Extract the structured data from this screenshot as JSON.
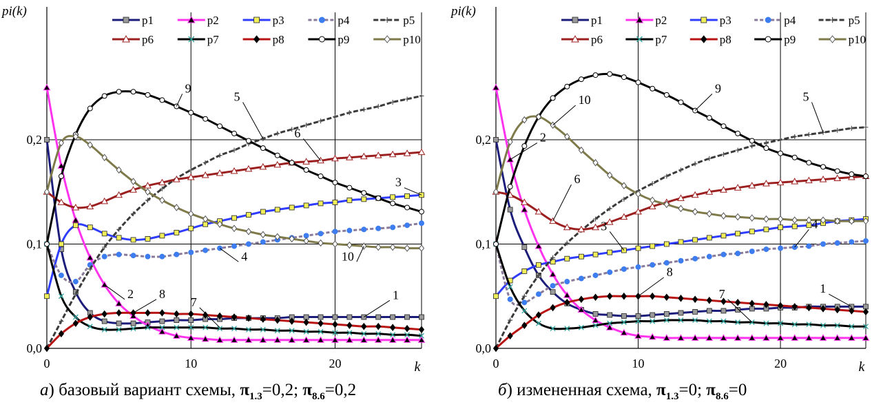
{
  "chart_data": [
    {
      "type": "line",
      "ylabel": "pi(k)",
      "xlabel": "k",
      "xlim": [
        0,
        26
      ],
      "ylim": [
        0,
        0.25
      ],
      "xticks": [
        "0",
        "10",
        "20"
      ],
      "yticks": [
        "0,0",
        "0,1",
        "0,2"
      ],
      "grid": true,
      "legend_position": "top",
      "x": [
        0,
        1,
        2,
        3,
        4,
        5,
        6,
        7,
        8,
        9,
        10,
        11,
        12,
        13,
        14,
        15,
        16,
        17,
        18,
        19,
        20,
        21,
        22,
        23,
        24,
        25,
        26
      ],
      "series": [
        {
          "name": "p1",
          "values": [
            0.2,
            0.095,
            0.054,
            0.034,
            0.026,
            0.024,
            0.024,
            0.025,
            0.026,
            0.027,
            0.027,
            0.028,
            0.028,
            0.029,
            0.029,
            0.029,
            0.029,
            0.03,
            0.03,
            0.03,
            0.03,
            0.03,
            0.03,
            0.03,
            0.03,
            0.03,
            0.03
          ]
        },
        {
          "name": "p2",
          "values": [
            0.25,
            0.175,
            0.123,
            0.087,
            0.061,
            0.043,
            0.031,
            0.022,
            0.016,
            0.012,
            0.01,
            0.009,
            0.008,
            0.008,
            0.008,
            0.008,
            0.008,
            0.008,
            0.008,
            0.008,
            0.008,
            0.008,
            0.008,
            0.008,
            0.008,
            0.008,
            0.008
          ]
        },
        {
          "name": "p3",
          "values": [
            0.05,
            0.1,
            0.118,
            0.116,
            0.11,
            0.106,
            0.104,
            0.105,
            0.108,
            0.111,
            0.115,
            0.119,
            0.122,
            0.125,
            0.128,
            0.131,
            0.133,
            0.135,
            0.137,
            0.139,
            0.14,
            0.142,
            0.143,
            0.144,
            0.145,
            0.146,
            0.147
          ]
        },
        {
          "name": "p4",
          "values": [
            0.1,
            0.07,
            0.064,
            0.08,
            0.088,
            0.09,
            0.089,
            0.088,
            0.088,
            0.09,
            0.092,
            0.094,
            0.096,
            0.098,
            0.1,
            0.102,
            0.104,
            0.106,
            0.108,
            0.11,
            0.112,
            0.113,
            0.114,
            0.115,
            0.116,
            0.118,
            0.12
          ]
        },
        {
          "name": "p5",
          "values": [
            0,
            0.026,
            0.052,
            0.076,
            0.097,
            0.114,
            0.129,
            0.142,
            0.153,
            0.163,
            0.171,
            0.178,
            0.185,
            0.19,
            0.196,
            0.201,
            0.206,
            0.21,
            0.214,
            0.218,
            0.222,
            0.226,
            0.229,
            0.232,
            0.236,
            0.239,
            0.242
          ]
        },
        {
          "name": "p6",
          "values": [
            0.15,
            0.14,
            0.135,
            0.136,
            0.141,
            0.147,
            0.152,
            0.156,
            0.159,
            0.162,
            0.164,
            0.166,
            0.168,
            0.17,
            0.172,
            0.174,
            0.176,
            0.178,
            0.179,
            0.18,
            0.182,
            0.183,
            0.184,
            0.185,
            0.186,
            0.187,
            0.188
          ]
        },
        {
          "name": "p7",
          "values": [
            0.1,
            0.05,
            0.03,
            0.021,
            0.018,
            0.018,
            0.019,
            0.02,
            0.02,
            0.02,
            0.02,
            0.02,
            0.019,
            0.019,
            0.018,
            0.018,
            0.017,
            0.017,
            0.016,
            0.016,
            0.015,
            0.015,
            0.014,
            0.014,
            0.013,
            0.013,
            0.012
          ]
        },
        {
          "name": "p8",
          "values": [
            0,
            0.014,
            0.024,
            0.03,
            0.033,
            0.034,
            0.034,
            0.034,
            0.034,
            0.033,
            0.033,
            0.032,
            0.031,
            0.03,
            0.029,
            0.028,
            0.027,
            0.026,
            0.025,
            0.024,
            0.023,
            0.022,
            0.021,
            0.021,
            0.02,
            0.019,
            0.018
          ]
        },
        {
          "name": "p9",
          "values": [
            0.1,
            0.165,
            0.205,
            0.23,
            0.242,
            0.246,
            0.246,
            0.243,
            0.238,
            0.232,
            0.226,
            0.22,
            0.213,
            0.206,
            0.199,
            0.192,
            0.185,
            0.178,
            0.171,
            0.165,
            0.159,
            0.154,
            0.149,
            0.144,
            0.139,
            0.135,
            0.131
          ]
        },
        {
          "name": "p10",
          "values": [
            0.15,
            0.197,
            0.203,
            0.195,
            0.183,
            0.171,
            0.16,
            0.15,
            0.142,
            0.135,
            0.129,
            0.124,
            0.119,
            0.115,
            0.112,
            0.109,
            0.107,
            0.105,
            0.103,
            0.101,
            0.1,
            0.099,
            0.098,
            0.097,
            0.097,
            0.096,
            0.096
          ]
        }
      ],
      "annotations": [
        {
          "text": "9",
          "at": [
            9,
            0.232
          ],
          "label": [
            9.4,
            0.244
          ]
        },
        {
          "text": "5",
          "at": [
            15,
            0.201
          ],
          "label": [
            13.6,
            0.236
          ]
        },
        {
          "text": "6",
          "at": [
            19,
            0.18
          ],
          "label": [
            17.8,
            0.201
          ]
        },
        {
          "text": "3",
          "at": [
            26,
            0.147
          ],
          "label": [
            24.8,
            0.154
          ]
        },
        {
          "text": "4",
          "at": [
            12,
            0.096
          ],
          "label": [
            13.3,
            0.083
          ]
        },
        {
          "text": "10",
          "at": [
            22,
            0.098
          ],
          "label": [
            21.5,
            0.083
          ]
        },
        {
          "text": "2",
          "at": [
            4,
            0.061
          ],
          "label": [
            5.4,
            0.047
          ]
        },
        {
          "text": "8",
          "at": [
            6,
            0.034
          ],
          "label": [
            7.6,
            0.047
          ]
        },
        {
          "text": "7",
          "at": [
            12,
            0.02
          ],
          "label": [
            10.6,
            0.039
          ]
        },
        {
          "text": "1",
          "at": [
            22,
            0.03
          ],
          "label": [
            23.8,
            0.046
          ]
        }
      ],
      "caption": {
        "prefix": "а",
        "text": ") базовый вариант схемы, ",
        "sym1": "π",
        "sub1": "1.3",
        "val1": "=0,2; ",
        "sym2": "π",
        "sub2": "8.6",
        "val2": "=0,2"
      }
    },
    {
      "type": "line",
      "ylabel": "pi(k)",
      "xlabel": "k",
      "xlim": [
        0,
        26
      ],
      "ylim": [
        0,
        0.25
      ],
      "xticks": [
        "0",
        "10",
        "20"
      ],
      "yticks": [
        "0,0",
        "0,1",
        "0,2"
      ],
      "grid": true,
      "legend_position": "top",
      "x": [
        0,
        1,
        2,
        3,
        4,
        5,
        6,
        7,
        8,
        9,
        10,
        11,
        12,
        13,
        14,
        15,
        16,
        17,
        18,
        19,
        20,
        21,
        22,
        23,
        24,
        25,
        26
      ],
      "series": [
        {
          "name": "p1",
          "values": [
            0.2,
            0.133,
            0.097,
            0.07,
            0.054,
            0.043,
            0.037,
            0.033,
            0.032,
            0.031,
            0.031,
            0.032,
            0.033,
            0.034,
            0.035,
            0.036,
            0.036,
            0.037,
            0.038,
            0.038,
            0.039,
            0.039,
            0.04,
            0.04,
            0.04,
            0.04,
            0.04
          ]
        },
        {
          "name": "p2",
          "values": [
            0.25,
            0.181,
            0.133,
            0.098,
            0.071,
            0.051,
            0.037,
            0.027,
            0.02,
            0.015,
            0.012,
            0.011,
            0.01,
            0.01,
            0.01,
            0.01,
            0.01,
            0.01,
            0.01,
            0.01,
            0.01,
            0.01,
            0.01,
            0.01,
            0.01,
            0.01,
            0.01
          ]
        },
        {
          "name": "p3",
          "values": [
            0.05,
            0.065,
            0.074,
            0.08,
            0.083,
            0.086,
            0.088,
            0.09,
            0.092,
            0.094,
            0.096,
            0.098,
            0.1,
            0.102,
            0.104,
            0.106,
            0.108,
            0.11,
            0.112,
            0.114,
            0.116,
            0.117,
            0.118,
            0.12,
            0.122,
            0.123,
            0.124
          ]
        },
        {
          "name": "p4",
          "values": [
            0.1,
            0.047,
            0.044,
            0.052,
            0.06,
            0.064,
            0.067,
            0.07,
            0.073,
            0.076,
            0.078,
            0.08,
            0.082,
            0.084,
            0.086,
            0.088,
            0.09,
            0.091,
            0.093,
            0.095,
            0.096,
            0.097,
            0.098,
            0.1,
            0.101,
            0.102,
            0.103
          ]
        },
        {
          "name": "p5",
          "values": [
            0,
            0.027,
            0.05,
            0.07,
            0.087,
            0.101,
            0.113,
            0.124,
            0.134,
            0.143,
            0.151,
            0.158,
            0.165,
            0.171,
            0.177,
            0.182,
            0.186,
            0.19,
            0.194,
            0.197,
            0.2,
            0.203,
            0.205,
            0.207,
            0.209,
            0.211,
            0.212
          ]
        },
        {
          "name": "p6",
          "values": [
            0.15,
            0.147,
            0.14,
            0.131,
            0.122,
            0.116,
            0.114,
            0.116,
            0.121,
            0.126,
            0.131,
            0.136,
            0.14,
            0.144,
            0.147,
            0.15,
            0.152,
            0.154,
            0.156,
            0.158,
            0.159,
            0.16,
            0.161,
            0.162,
            0.163,
            0.164,
            0.165
          ]
        },
        {
          "name": "p7",
          "values": [
            0.1,
            0.059,
            0.036,
            0.024,
            0.019,
            0.019,
            0.02,
            0.022,
            0.024,
            0.025,
            0.026,
            0.026,
            0.027,
            0.027,
            0.027,
            0.026,
            0.026,
            0.025,
            0.025,
            0.024,
            0.024,
            0.023,
            0.023,
            0.022,
            0.022,
            0.021,
            0.021
          ]
        },
        {
          "name": "p8",
          "values": [
            0,
            0.012,
            0.022,
            0.032,
            0.039,
            0.044,
            0.047,
            0.049,
            0.05,
            0.05,
            0.05,
            0.05,
            0.049,
            0.048,
            0.047,
            0.046,
            0.045,
            0.044,
            0.043,
            0.042,
            0.041,
            0.04,
            0.039,
            0.038,
            0.037,
            0.036,
            0.035
          ]
        },
        {
          "name": "p9",
          "values": [
            0.1,
            0.155,
            0.194,
            0.222,
            0.24,
            0.251,
            0.258,
            0.262,
            0.263,
            0.26,
            0.255,
            0.249,
            0.243,
            0.236,
            0.228,
            0.221,
            0.213,
            0.206,
            0.199,
            0.192,
            0.187,
            0.183,
            0.178,
            0.174,
            0.17,
            0.167,
            0.165
          ]
        },
        {
          "name": "p10",
          "values": [
            0.15,
            0.198,
            0.219,
            0.222,
            0.214,
            0.203,
            0.19,
            0.178,
            0.166,
            0.156,
            0.148,
            0.142,
            0.138,
            0.134,
            0.131,
            0.129,
            0.127,
            0.126,
            0.125,
            0.124,
            0.124,
            0.123,
            0.123,
            0.123,
            0.122,
            0.122,
            0.122
          ]
        }
      ],
      "annotations": [
        {
          "text": "2",
          "at": [
            1,
            0.181
          ],
          "label": [
            2.9,
            0.197
          ]
        },
        {
          "text": "6",
          "at": [
            4,
            0.122
          ],
          "label": [
            5.3,
            0.157
          ]
        },
        {
          "text": "10",
          "at": [
            4,
            0.214
          ],
          "label": [
            5.6,
            0.233
          ]
        },
        {
          "text": "9",
          "at": [
            14,
            0.228
          ],
          "label": [
            15.2,
            0.244
          ]
        },
        {
          "text": "5",
          "at": [
            23,
            0.207
          ],
          "label": [
            22.2,
            0.236
          ]
        },
        {
          "text": "3",
          "at": [
            9,
            0.094
          ],
          "label": [
            8.0,
            0.112
          ]
        },
        {
          "text": "4",
          "at": [
            21,
            0.097
          ],
          "label": [
            22.0,
            0.114
          ]
        },
        {
          "text": "8",
          "at": [
            10,
            0.05
          ],
          "label": [
            11.8,
            0.068
          ]
        },
        {
          "text": "7",
          "at": [
            18,
            0.025
          ],
          "label": [
            16.3,
            0.047
          ]
        },
        {
          "text": "1",
          "at": [
            25,
            0.04
          ],
          "label": [
            23.4,
            0.052
          ]
        }
      ],
      "caption": {
        "prefix": "б",
        "text": ") измененная схема, ",
        "sym1": "π",
        "sub1": "1.3",
        "val1": "=0; ",
        "sym2": "π",
        "sub2": "8.6",
        "val2": "=0"
      }
    }
  ],
  "legend": [
    {
      "name": "p1",
      "color": "#1c1c7a",
      "marker": "square",
      "marker_fill": "#9a9a9a",
      "dash": ""
    },
    {
      "name": "p2",
      "color": "#ff33ee",
      "marker": "triangle",
      "marker_fill": "#000000",
      "dash": ""
    },
    {
      "name": "p3",
      "color": "#2f3dff",
      "marker": "square",
      "marker_fill": "#f0ee5a",
      "dash": ""
    },
    {
      "name": "p4",
      "color": "#8a7a9a",
      "marker": "circle",
      "marker_fill": "#3d7df0",
      "dash": "5,3"
    },
    {
      "name": "p5",
      "color": "#3a3a3a",
      "marker": "plus",
      "marker_fill": "#555555",
      "dash": "7,3"
    },
    {
      "name": "p6",
      "color": "#9c1f1f",
      "marker": "triangle",
      "marker_fill": "#ffffff",
      "dash": ""
    },
    {
      "name": "p7",
      "color": "#000000",
      "marker": "x",
      "marker_fill": "#2fa6a0",
      "dash": ""
    },
    {
      "name": "p8",
      "color": "#b81414",
      "marker": "diamond",
      "marker_fill": "#000000",
      "dash": ""
    },
    {
      "name": "p9",
      "color": "#000000",
      "marker": "circle",
      "marker_fill": "#ffffff",
      "dash": ""
    },
    {
      "name": "p10",
      "color": "#7e7a4a",
      "marker": "diamond",
      "marker_fill": "#ffffff",
      "dash": ""
    }
  ]
}
